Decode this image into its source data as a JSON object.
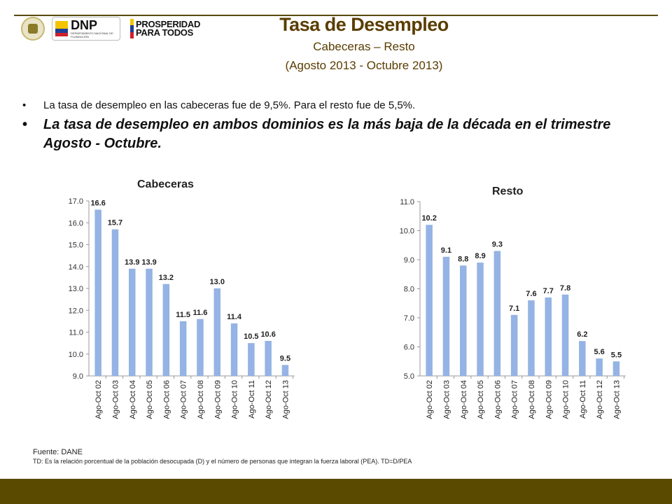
{
  "header": {
    "logo_dnp_text": "DNP",
    "logo_dnp_sub": "DEPARTAMENTO NACIONAL DE PLANEACIÓN",
    "logo_pros_line1": "PROSPERIDAD",
    "logo_pros_line2": "PARA TODOS",
    "title": "Tasa de Desempleo",
    "subtitle": "Cabeceras – Resto",
    "period": "(Agosto 2013 - Octubre 2013)"
  },
  "bullets": [
    "La tasa de desempleo en las cabeceras fue de 9,5%. Para el resto fue de 5,5%.",
    "La tasa de desempleo en ambos dominios es la más baja de la década en el trimestre Agosto - Octubre."
  ],
  "footer": {
    "source": "Fuente: DANE",
    "note": "TD:  Es la relación porcentual de la población desocupada (D) y el número de personas que integran la fuerza laboral (PEA). TD=D/PEA"
  },
  "colors": {
    "bar": "#95b3e4",
    "title": "#5a3d00",
    "band": "#5a4a00"
  },
  "chart_data": [
    {
      "type": "bar",
      "title": "Cabeceras",
      "categories": [
        "Ago-Oct 02",
        "Ago-Oct 03",
        "Ago-Oct 04",
        "Ago-Oct 05",
        "Ago-Oct 06",
        "Ago-Oct 07",
        "Ago-Oct 08",
        "Ago-Oct 09",
        "Ago-Oct 10",
        "Ago-Oct 11",
        "Ago-Oct 12",
        "Ago-Oct 13"
      ],
      "values": [
        16.6,
        15.7,
        13.9,
        13.9,
        13.2,
        11.5,
        11.6,
        13.0,
        11.4,
        10.5,
        10.6,
        9.5
      ],
      "ylim": [
        9.0,
        17.0
      ],
      "yticks": [
        "9.0",
        "10.0",
        "11.0",
        "12.0",
        "13.0",
        "14.0",
        "15.0",
        "16.0",
        "17.0"
      ],
      "grid": false,
      "xlabel": "",
      "ylabel": ""
    },
    {
      "type": "bar",
      "title": "Resto",
      "categories": [
        "Ago-Oct 02",
        "Ago-Oct 03",
        "Ago-Oct 04",
        "Ago-Oct 05",
        "Ago-Oct 06",
        "Ago-Oct 07",
        "Ago-Oct 08",
        "Ago-Oct 09",
        "Ago-Oct 10",
        "Ago-Oct 11",
        "Ago-Oct 12",
        "Ago-Oct 13"
      ],
      "values": [
        10.2,
        9.1,
        8.8,
        8.9,
        9.3,
        7.1,
        7.6,
        7.7,
        7.8,
        6.2,
        5.6,
        5.5
      ],
      "ylim": [
        5.0,
        11.0
      ],
      "yticks": [
        "5.0",
        "6.0",
        "7.0",
        "8.0",
        "9.0",
        "10.0",
        "11.0"
      ],
      "grid": false,
      "xlabel": "",
      "ylabel": ""
    }
  ]
}
